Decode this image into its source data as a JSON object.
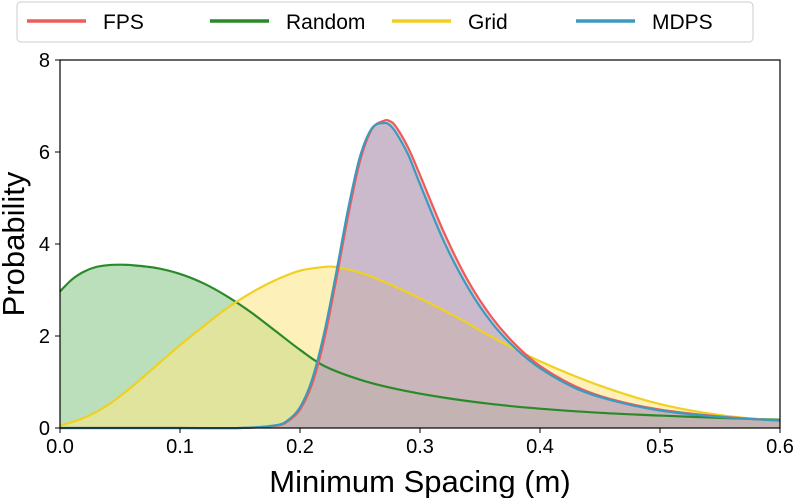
{
  "chart_data": {
    "type": "area",
    "xlabel": "Minimum Spacing (m)",
    "ylabel": "Probability",
    "xlim": [
      0.0,
      0.6
    ],
    "ylim": [
      0,
      8
    ],
    "xticks": [
      "0.0",
      "0.1",
      "0.2",
      "0.3",
      "0.4",
      "0.5",
      "0.6"
    ],
    "yticks": [
      "0",
      "2",
      "4",
      "6",
      "8"
    ],
    "legend_position": "top",
    "grid": false,
    "series": [
      {
        "name": "Random",
        "color": "#2a8a2a",
        "fill": "#8cc98c",
        "x": [
          0.0,
          0.01,
          0.02,
          0.03,
          0.04,
          0.05,
          0.06,
          0.08,
          0.1,
          0.12,
          0.14,
          0.16,
          0.18,
          0.2,
          0.22,
          0.25,
          0.28,
          0.32,
          0.36,
          0.4,
          0.45,
          0.5,
          0.55,
          0.6
        ],
        "y": [
          2.97,
          3.23,
          3.4,
          3.5,
          3.54,
          3.55,
          3.54,
          3.48,
          3.35,
          3.14,
          2.85,
          2.5,
          2.1,
          1.7,
          1.35,
          1.05,
          0.85,
          0.66,
          0.52,
          0.42,
          0.33,
          0.27,
          0.22,
          0.18
        ]
      },
      {
        "name": "Grid",
        "color": "#f0d020",
        "fill": "#fbe88a",
        "x": [
          0.0,
          0.02,
          0.04,
          0.06,
          0.08,
          0.1,
          0.12,
          0.14,
          0.16,
          0.18,
          0.2,
          0.22,
          0.23,
          0.25,
          0.27,
          0.3,
          0.33,
          0.36,
          0.4,
          0.45,
          0.5,
          0.55,
          0.6
        ],
        "y": [
          0.05,
          0.22,
          0.5,
          0.9,
          1.35,
          1.8,
          2.22,
          2.62,
          2.95,
          3.22,
          3.42,
          3.5,
          3.5,
          3.38,
          3.18,
          2.82,
          2.42,
          1.98,
          1.45,
          0.92,
          0.52,
          0.28,
          0.15
        ]
      },
      {
        "name": "FPS",
        "color": "#f05a5a",
        "fill": "#d49aa0",
        "x": [
          0.0,
          0.1,
          0.15,
          0.18,
          0.19,
          0.2,
          0.21,
          0.22,
          0.23,
          0.24,
          0.25,
          0.26,
          0.27,
          0.275,
          0.28,
          0.29,
          0.3,
          0.32,
          0.34,
          0.36,
          0.38,
          0.4,
          0.43,
          0.46,
          0.5,
          0.55,
          0.6
        ],
        "y": [
          0.0,
          0.0,
          0.0,
          0.05,
          0.15,
          0.4,
          0.95,
          1.9,
          3.2,
          4.6,
          5.8,
          6.5,
          6.68,
          6.67,
          6.55,
          6.1,
          5.5,
          4.25,
          3.2,
          2.4,
          1.8,
          1.35,
          0.9,
          0.62,
          0.4,
          0.25,
          0.16
        ]
      },
      {
        "name": "MDPS",
        "color": "#3a9abf",
        "fill": "#a8a8cc",
        "x": [
          0.0,
          0.1,
          0.15,
          0.18,
          0.19,
          0.2,
          0.21,
          0.22,
          0.23,
          0.24,
          0.25,
          0.26,
          0.27,
          0.275,
          0.28,
          0.29,
          0.3,
          0.32,
          0.34,
          0.36,
          0.38,
          0.4,
          0.43,
          0.46,
          0.5,
          0.55,
          0.6
        ],
        "y": [
          0.0,
          0.0,
          0.0,
          0.06,
          0.17,
          0.45,
          1.05,
          2.05,
          3.35,
          4.75,
          5.9,
          6.52,
          6.63,
          6.58,
          6.42,
          5.95,
          5.3,
          4.05,
          3.05,
          2.28,
          1.72,
          1.3,
          0.86,
          0.6,
          0.38,
          0.24,
          0.16
        ]
      }
    ],
    "legend_order": [
      "FPS",
      "Random",
      "Grid",
      "MDPS"
    ]
  }
}
